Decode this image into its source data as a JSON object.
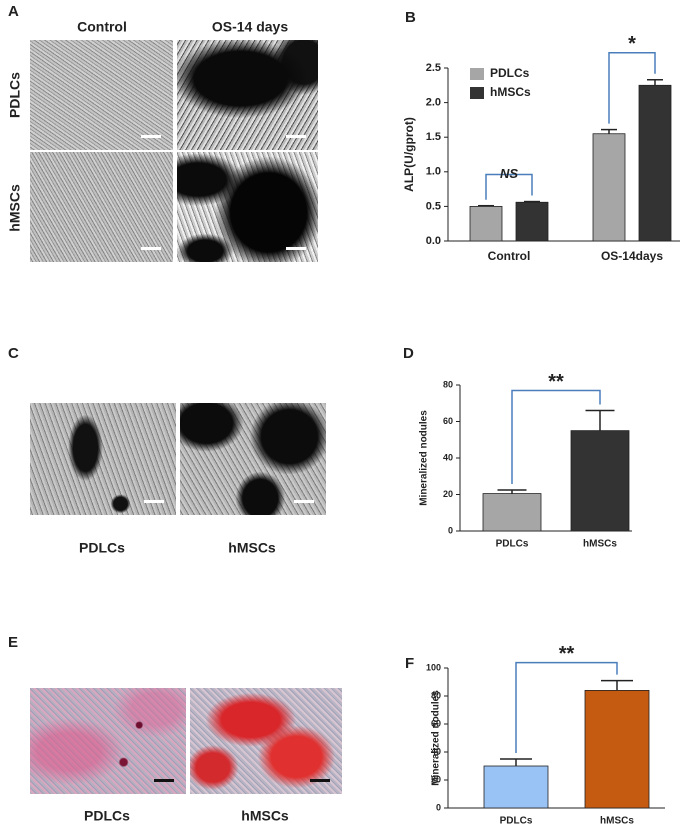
{
  "panel_a": {
    "label": "A",
    "columns": [
      "Control",
      "OS-14 days"
    ],
    "rows": [
      "PDLCs",
      "hMSCs"
    ]
  },
  "panel_c": {
    "label": "C",
    "captions": [
      "PDLCs",
      "hMSCs"
    ]
  },
  "panel_e": {
    "label": "E",
    "captions": [
      "PDLCs",
      "hMSCs"
    ]
  },
  "chart_data": [
    {
      "type": "bar",
      "panel_label": "B",
      "y_label": "ALP(U/gprot)",
      "categories": [
        "Control",
        "OS-14days"
      ],
      "series": [
        {
          "name": "PDLCs",
          "color": "#a6a6a6",
          "values": [
            0.5,
            1.55
          ],
          "errors": [
            0.01,
            0.06
          ]
        },
        {
          "name": "hMSCs",
          "color": "#333333",
          "values": [
            0.56,
            2.25
          ],
          "errors": [
            0.01,
            0.08
          ]
        }
      ],
      "annotations": [
        "NS",
        "*"
      ],
      "ylim": [
        0,
        2.5
      ],
      "yticks": [
        {
          "value": 0,
          "label": "0.0"
        },
        0.5,
        {
          "value": 1,
          "label": "1.0"
        },
        1.5,
        {
          "value": 2,
          "label": "2.0"
        },
        2.5
      ],
      "legend": "top-left"
    },
    {
      "type": "bar",
      "panel_label": "D",
      "y_label": "Mineralized nodules",
      "categories": [
        "PDLCs",
        "hMSCs"
      ],
      "values": [
        20.5,
        55
      ],
      "errors": [
        2,
        11
      ],
      "colors": [
        "#a6a6a6",
        "#333333"
      ],
      "annotation": "**",
      "ylim": [
        0,
        80
      ],
      "yticks": [
        0,
        20,
        40,
        60,
        80
      ]
    },
    {
      "type": "bar",
      "panel_label": "F",
      "y_label": "Mineralized nodules",
      "categories": [
        "PDLCs",
        "hMSCs"
      ],
      "values": [
        30,
        84
      ],
      "errors": [
        5,
        7
      ],
      "colors": [
        "#99c2f5",
        "#c55a11"
      ],
      "annotation": "**",
      "ylim": [
        0,
        100
      ],
      "yticks": [
        0,
        20,
        40,
        60,
        80,
        100
      ]
    }
  ]
}
